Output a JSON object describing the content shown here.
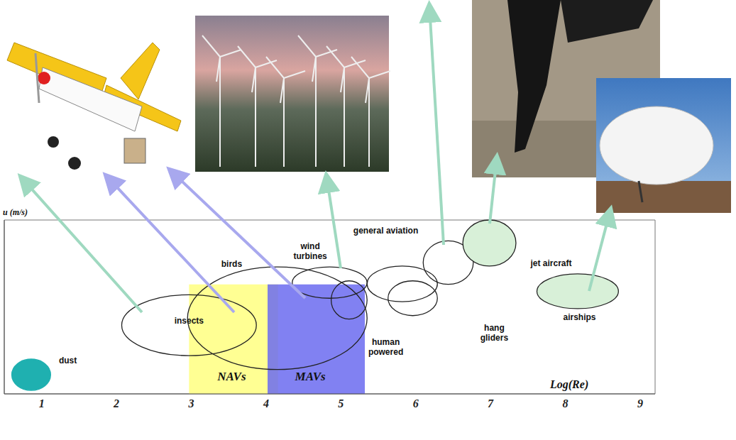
{
  "chart_data": {
    "type": "regions",
    "x_label": "Log(Re)",
    "y_label": "u (m/s)",
    "xlim": [
      0.5,
      9.2
    ],
    "xticks": [
      1,
      2,
      3,
      4,
      5,
      6,
      7,
      8,
      9
    ],
    "ylim": [
      0,
      10
    ],
    "yticks": [],
    "tick_labels": "x",
    "grid": false,
    "bands": [
      {
        "name": "NAVs",
        "x": [
          2.97,
          4.16
        ],
        "y": [
          0,
          6.3
        ],
        "color": "#ffff80"
      },
      {
        "name": "MAVs",
        "x": [
          4.02,
          5.32
        ],
        "y": [
          0,
          6.3
        ],
        "color": "#6b6bf0"
      }
    ],
    "regions": [
      {
        "name": "dust",
        "x": [
          0.6,
          1.12
        ],
        "y": [
          0.2,
          2.0
        ],
        "color": "#1fb0b0"
      },
      {
        "name": "insects",
        "x": [
          2.07,
          3.87
        ],
        "y": [
          2.2,
          5.7
        ]
      },
      {
        "name": "birds",
        "x": [
          2.95,
          5.35
        ],
        "y": [
          1.4,
          7.3
        ]
      },
      {
        "name": "wind turbines",
        "x": [
          4.35,
          5.35
        ],
        "y": [
          5.5,
          7.3
        ]
      },
      {
        "name": "human powered",
        "x": [
          4.87,
          5.35
        ],
        "y": [
          4.3,
          6.5
        ]
      },
      {
        "name": "hang gliders",
        "x": [
          5.63,
          6.29
        ],
        "y": [
          4.5,
          6.5
        ]
      },
      {
        "name": null,
        "x": [
          5.35,
          6.29
        ],
        "y": [
          5.3,
          7.35
        ]
      },
      {
        "name": "general aviation",
        "x": [
          6.1,
          6.77
        ],
        "y": [
          6.3,
          8.8
        ]
      },
      {
        "name": "jet aircraft",
        "x": [
          6.63,
          7.34
        ],
        "y": [
          7.35,
          10.0
        ],
        "color": "#d8f0d8"
      },
      {
        "name": "airships",
        "x": [
          7.62,
          8.71
        ],
        "y": [
          4.9,
          6.9
        ],
        "color": "#d8f0d8"
      }
    ]
  }
}
